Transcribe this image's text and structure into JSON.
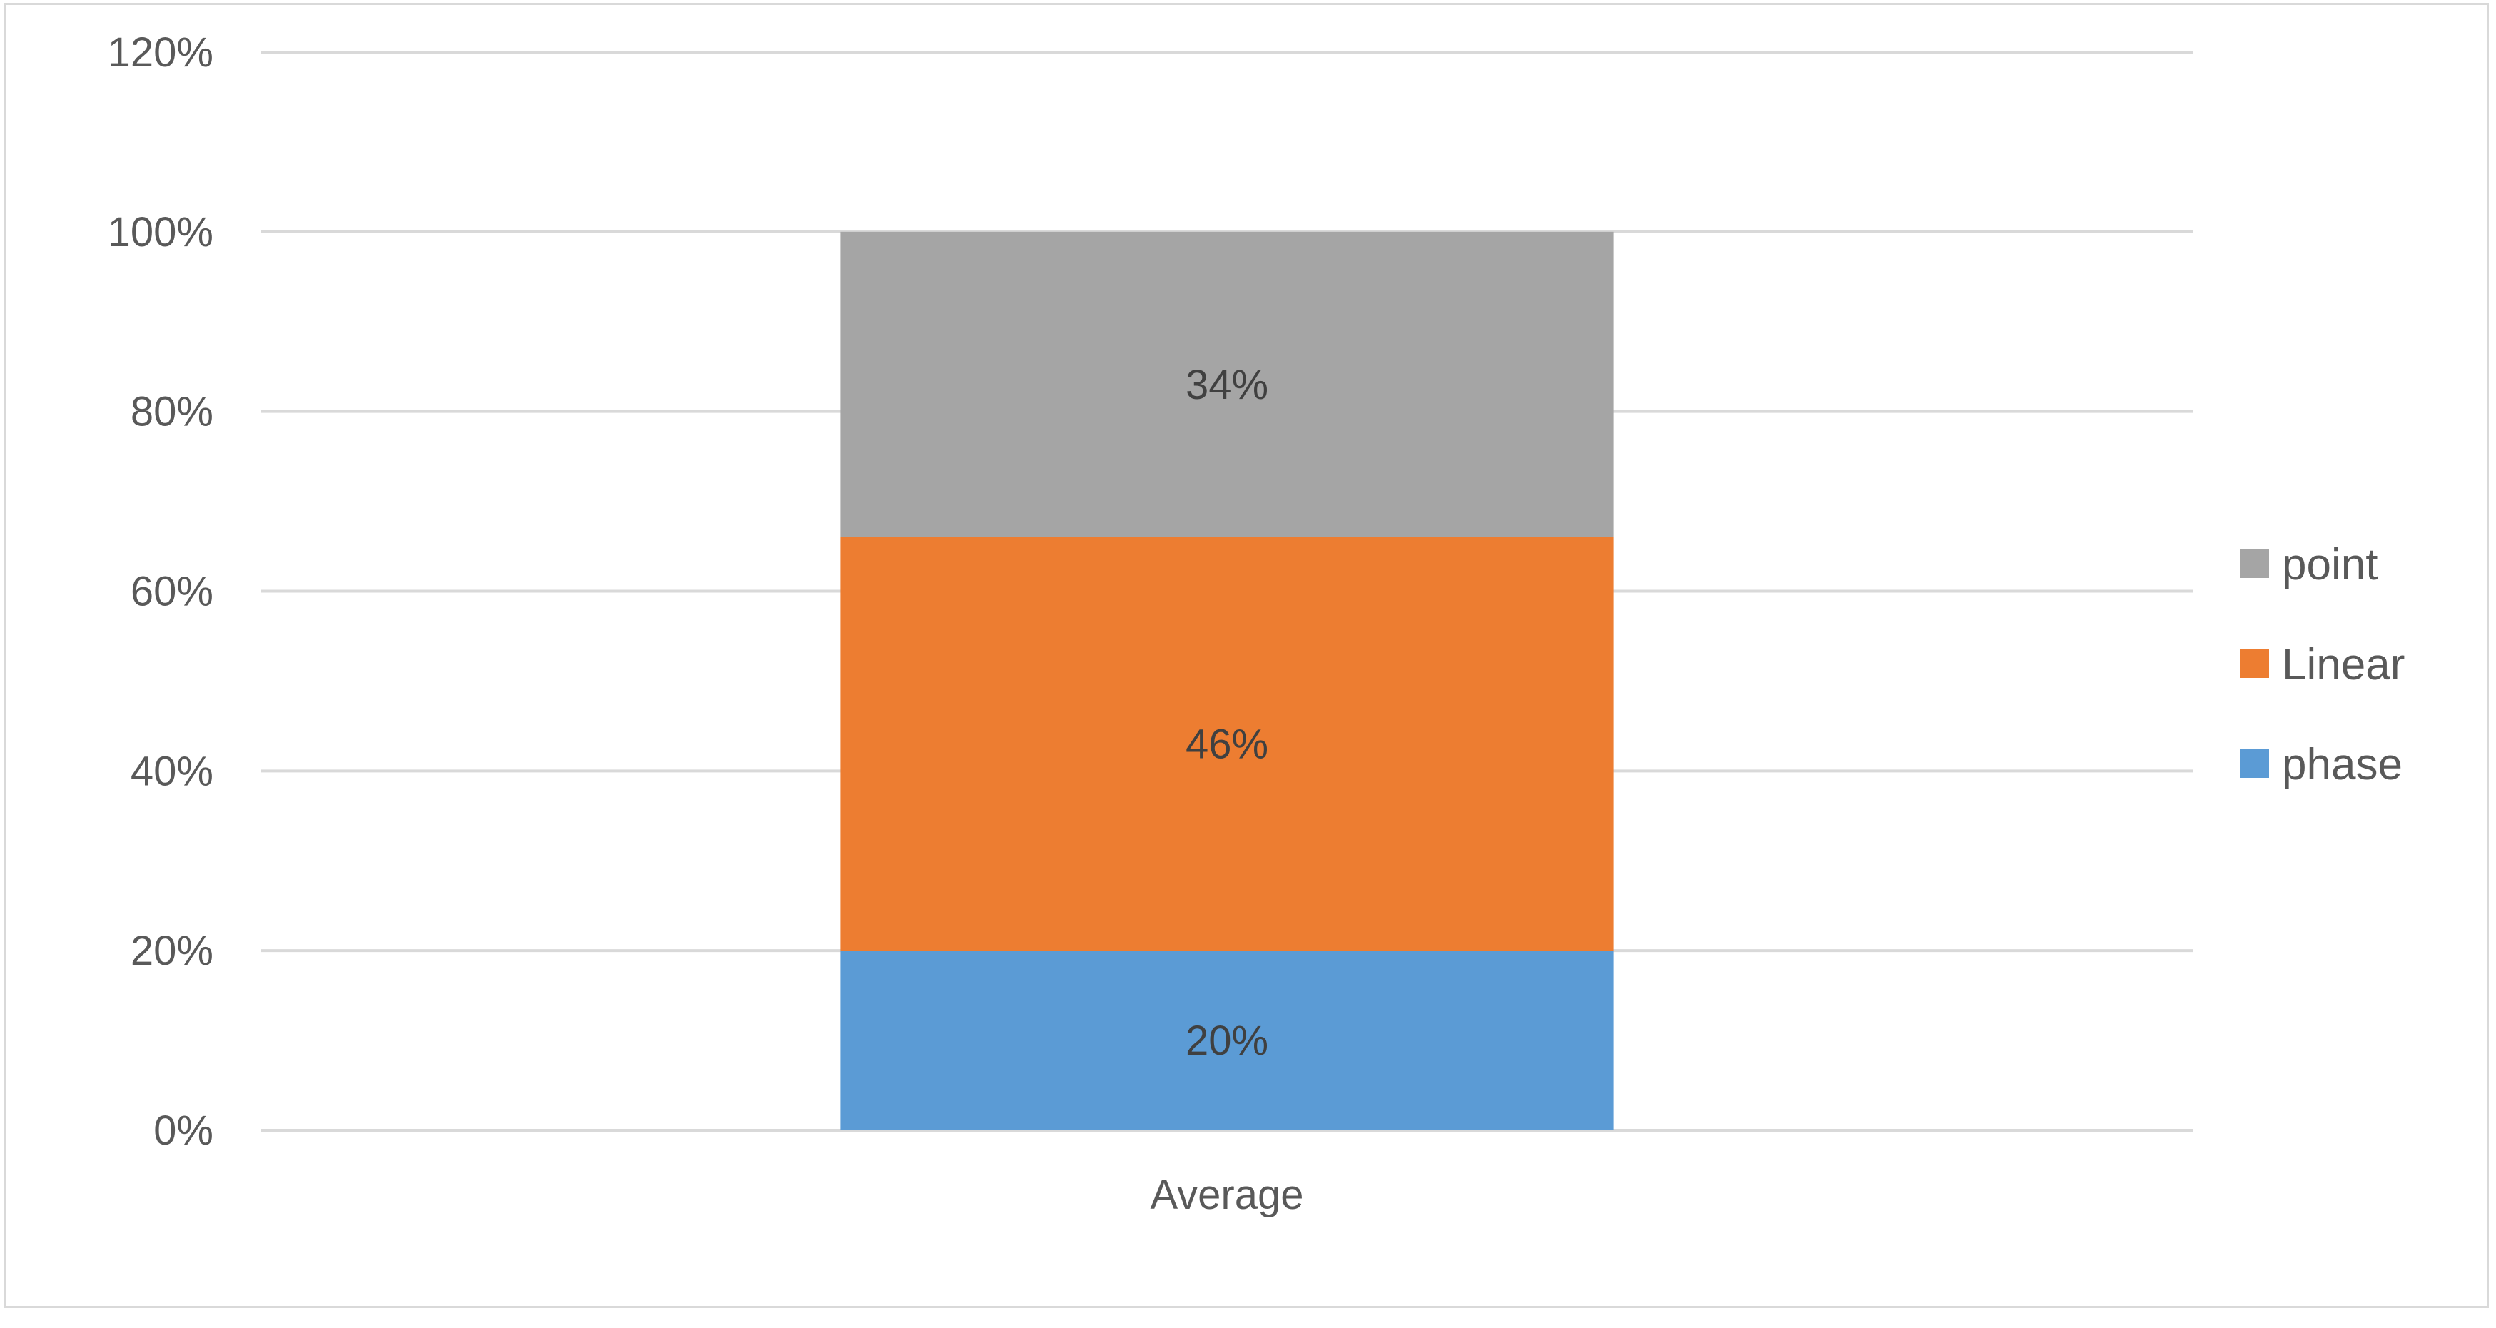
{
  "chart_data": {
    "type": "bar",
    "stacked": true,
    "percent": true,
    "categories": [
      "Average"
    ],
    "series": [
      {
        "name": "phase",
        "values": [
          20
        ],
        "color": "#5b9bd5",
        "label": "20%"
      },
      {
        "name": "Linear",
        "values": [
          46
        ],
        "color": "#ed7d31",
        "label": "46%"
      },
      {
        "name": "point",
        "values": [
          34
        ],
        "color": "#a5a5a5",
        "label": "34%"
      }
    ],
    "ylim": [
      0,
      120
    ],
    "yticks": [
      "0%",
      "20%",
      "40%",
      "60%",
      "80%",
      "100%",
      "120%"
    ],
    "grid": true,
    "legend_position": "right",
    "legend_order": [
      "point",
      "Linear",
      "phase"
    ],
    "title": "",
    "xlabel": "",
    "ylabel": ""
  }
}
